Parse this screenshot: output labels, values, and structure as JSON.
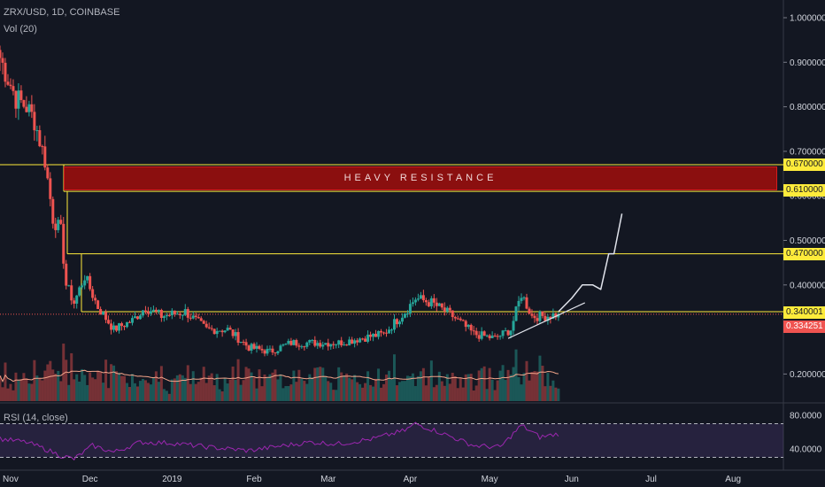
{
  "header": {
    "title": "ZRX/USD, 1D, COINBASE",
    "volume_label": "Vol (20)"
  },
  "rsi_label": "RSI (14, close)",
  "annotations": {
    "resistance_label": "HEAVY RESISTANCE"
  },
  "price_tags": [
    {
      "value": "0.670000",
      "color": "#ffeb3b"
    },
    {
      "value": "0.610000",
      "color": "#ffeb3b"
    },
    {
      "value": "0.470000",
      "color": "#ffeb3b"
    },
    {
      "value": "0.340001",
      "color": "#ffeb3b"
    },
    {
      "value": "0.334251",
      "color": "#ef5350"
    }
  ],
  "colors": {
    "background": "#131722",
    "up": "#26a69a",
    "down": "#ef5350",
    "hline": "#ffeb3b",
    "rsi": "#9c27b0",
    "vol_ma": "#f4a58a"
  },
  "chart_data": {
    "type": "candlestick",
    "title": "ZRX/USD, 1D, COINBASE",
    "y_axis_ticks": [
      1.0,
      0.9,
      0.8,
      0.7,
      0.6,
      0.5,
      0.4,
      0.3,
      0.2
    ],
    "y_axis_tick_labels": [
      "1.000000",
      "0.900000",
      "0.800000",
      "0.700000",
      "0.600000",
      "0.500000",
      "0.400000",
      "0.300000",
      "0.200000"
    ],
    "x_axis_tick_labels": [
      "Nov",
      "Dec",
      "2019",
      "Feb",
      "Mar",
      "Apr",
      "May",
      "Jun",
      "Jul",
      "Aug"
    ],
    "x_range": [
      "2018-10-28",
      "2019-08-20"
    ],
    "ylim": [
      0.16,
      1.03
    ],
    "horizontal_levels": [
      0.67,
      0.61,
      0.47,
      0.34
    ],
    "resistance_zone": [
      0.61,
      0.67
    ],
    "last_price": 0.334251,
    "close_series": [
      {
        "date": "2018-10-28",
        "close": 0.91
      },
      {
        "date": "2018-11-03",
        "close": 0.82
      },
      {
        "date": "2018-11-07",
        "close": 0.8
      },
      {
        "date": "2018-11-10",
        "close": 0.77
      },
      {
        "date": "2018-11-14",
        "close": 0.68
      },
      {
        "date": "2018-11-17",
        "close": 0.55
      },
      {
        "date": "2018-11-20",
        "close": 0.52
      },
      {
        "date": "2018-11-22",
        "close": 0.4
      },
      {
        "date": "2018-11-25",
        "close": 0.36
      },
      {
        "date": "2018-11-29",
        "close": 0.42
      },
      {
        "date": "2018-12-04",
        "close": 0.35
      },
      {
        "date": "2018-12-10",
        "close": 0.3
      },
      {
        "date": "2018-12-17",
        "close": 0.32
      },
      {
        "date": "2018-12-22",
        "close": 0.35
      },
      {
        "date": "2018-12-28",
        "close": 0.33
      },
      {
        "date": "2019-01-06",
        "close": 0.34
      },
      {
        "date": "2019-01-14",
        "close": 0.3
      },
      {
        "date": "2019-01-22",
        "close": 0.3
      },
      {
        "date": "2019-01-30",
        "close": 0.26
      },
      {
        "date": "2019-02-07",
        "close": 0.25
      },
      {
        "date": "2019-02-15",
        "close": 0.27
      },
      {
        "date": "2019-02-25",
        "close": 0.27
      },
      {
        "date": "2019-03-05",
        "close": 0.27
      },
      {
        "date": "2019-03-13",
        "close": 0.28
      },
      {
        "date": "2019-03-22",
        "close": 0.29
      },
      {
        "date": "2019-03-30",
        "close": 0.34
      },
      {
        "date": "2019-04-03",
        "close": 0.37
      },
      {
        "date": "2019-04-09",
        "close": 0.36
      },
      {
        "date": "2019-04-17",
        "close": 0.33
      },
      {
        "date": "2019-04-25",
        "close": 0.29
      },
      {
        "date": "2019-05-03",
        "close": 0.28
      },
      {
        "date": "2019-05-09",
        "close": 0.3
      },
      {
        "date": "2019-05-13",
        "close": 0.38
      },
      {
        "date": "2019-05-17",
        "close": 0.33
      },
      {
        "date": "2019-05-22",
        "close": 0.33
      },
      {
        "date": "2019-05-27",
        "close": 0.334251
      }
    ],
    "projection_path": [
      {
        "date": "2019-05-27",
        "close": 0.34
      },
      {
        "date": "2019-06-01",
        "close": 0.37
      },
      {
        "date": "2019-06-05",
        "close": 0.4
      },
      {
        "date": "2019-06-09",
        "close": 0.4
      },
      {
        "date": "2019-06-12",
        "close": 0.39
      },
      {
        "date": "2019-06-15",
        "close": 0.47
      },
      {
        "date": "2019-06-17",
        "close": 0.47
      },
      {
        "date": "2019-06-20",
        "close": 0.56
      }
    ],
    "trendline": [
      {
        "date": "2019-05-08",
        "value": 0.28
      },
      {
        "date": "2019-06-06",
        "value": 0.36
      }
    ],
    "volume_series_label": "Vol (20)",
    "rsi": {
      "label": "RSI (14, close)",
      "ticks": [
        80,
        40
      ],
      "tick_labels": [
        "80.0000",
        "40.0000"
      ],
      "bands": [
        70,
        30
      ],
      "values": [
        {
          "date": "2018-10-28",
          "value": 52
        },
        {
          "date": "2018-11-07",
          "value": 48
        },
        {
          "date": "2018-11-14",
          "value": 40
        },
        {
          "date": "2018-11-20",
          "value": 32
        },
        {
          "date": "2018-11-25",
          "value": 28
        },
        {
          "date": "2018-12-02",
          "value": 44
        },
        {
          "date": "2018-12-10",
          "value": 36
        },
        {
          "date": "2018-12-20",
          "value": 48
        },
        {
          "date": "2019-01-01",
          "value": 47
        },
        {
          "date": "2019-01-15",
          "value": 42
        },
        {
          "date": "2019-01-30",
          "value": 38
        },
        {
          "date": "2019-02-10",
          "value": 43
        },
        {
          "date": "2019-02-22",
          "value": 48
        },
        {
          "date": "2019-03-05",
          "value": 46
        },
        {
          "date": "2019-03-18",
          "value": 52
        },
        {
          "date": "2019-03-30",
          "value": 62
        },
        {
          "date": "2019-04-03",
          "value": 70
        },
        {
          "date": "2019-04-12",
          "value": 60
        },
        {
          "date": "2019-04-25",
          "value": 44
        },
        {
          "date": "2019-05-05",
          "value": 42
        },
        {
          "date": "2019-05-13",
          "value": 68
        },
        {
          "date": "2019-05-20",
          "value": 54
        },
        {
          "date": "2019-05-27",
          "value": 58
        }
      ]
    }
  }
}
